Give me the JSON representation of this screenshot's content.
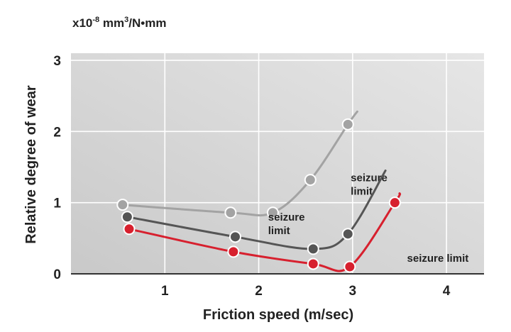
{
  "chart_data": {
    "type": "line",
    "unit_prefix": "x10",
    "unit_exponent": "-8",
    "unit_main": " mm",
    "unit_superscript": "3",
    "unit_suffix": "/N•mm",
    "xlabel": "Friction speed (m/sec)",
    "ylabel": "Relative degree of wear",
    "xlim": [
      0,
      4.4
    ],
    "ylim": [
      0,
      3.1
    ],
    "xticks": [
      1,
      2,
      3,
      4
    ],
    "yticks": [
      0,
      1,
      2,
      3
    ],
    "grid": true,
    "background": [
      "#c9c9c9",
      "#e6e6e6"
    ],
    "series": [
      {
        "color": "#a3a3a3",
        "x": [
          0.55,
          1.7,
          2.15,
          2.55,
          2.95
        ],
        "y": [
          0.97,
          0.86,
          0.86,
          1.32,
          2.1
        ],
        "curve_end": [
          3.05,
          2.28
        ],
        "annotation": [
          "seizure",
          "limit"
        ],
        "annotation_at": [
          0.03,
          1.3
        ]
      },
      {
        "color": "#555555",
        "x": [
          0.6,
          1.75,
          2.58,
          2.95
        ],
        "y": [
          0.8,
          0.52,
          0.35,
          0.56
        ],
        "curve_end": [
          3.35,
          1.45
        ],
        "annotation": [
          "seizure",
          "limit"
        ],
        "annotation_at": [
          -0.85,
          0.75
        ]
      },
      {
        "color": "#d7202e",
        "x": [
          0.62,
          1.73,
          2.58,
          2.97,
          3.45
        ],
        "y": [
          0.63,
          0.31,
          0.14,
          0.1,
          1.0
        ],
        "curve_end": [
          3.5,
          1.13
        ],
        "annotation": [
          "seizure limit"
        ],
        "annotation_at": [
          0.13,
          0.17
        ]
      }
    ]
  }
}
